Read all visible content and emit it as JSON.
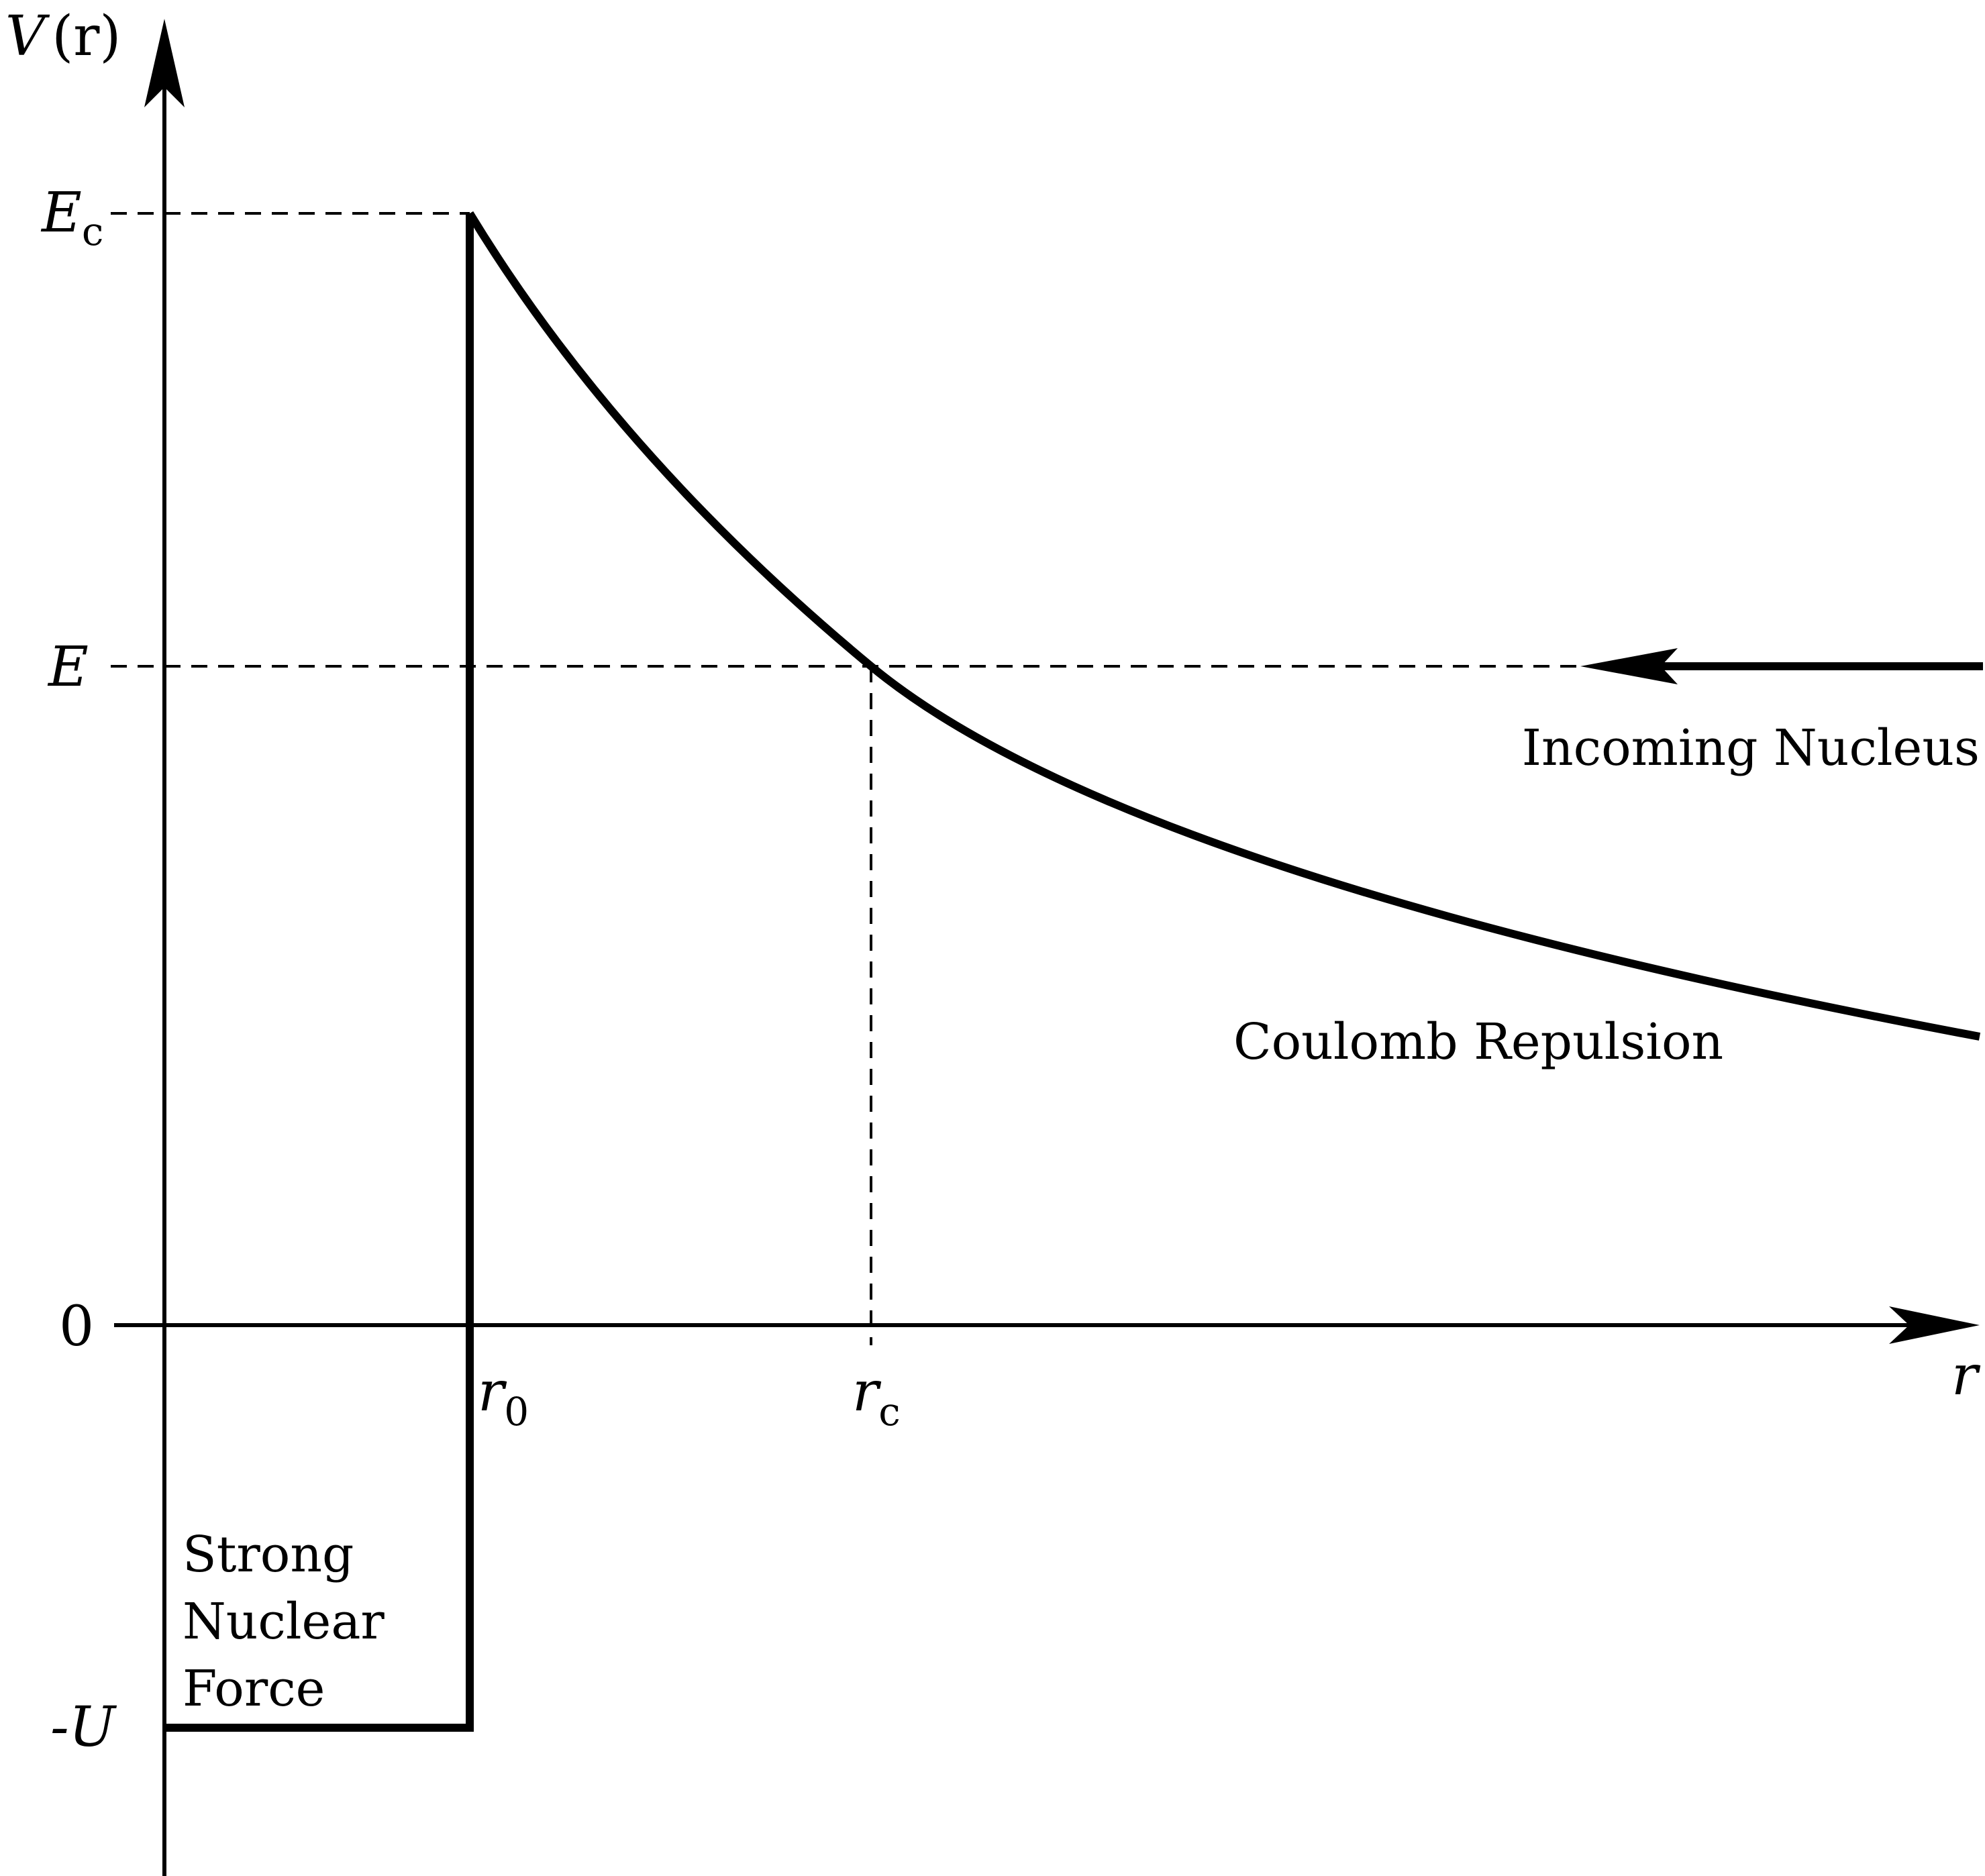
{
  "axes": {
    "y_axis_label": {
      "main": "V",
      "arg": "(r)"
    },
    "x_axis_label": "r",
    "zero_label": "0"
  },
  "levels": {
    "ec": {
      "main": "E",
      "sub": "c"
    },
    "e": {
      "main": "E"
    },
    "minus_u": "-U"
  },
  "radii": {
    "r0": {
      "main": "r",
      "sub": "0"
    },
    "rc": {
      "main": "r",
      "sub": "c"
    }
  },
  "annotations": {
    "incoming": "Incoming Nucleus",
    "coulomb": "Coulomb Repulsion",
    "strong_lines": [
      "Strong",
      "Nuclear",
      "Force"
    ]
  },
  "colors": {
    "ink": "#000000",
    "background": "#ffffff"
  }
}
